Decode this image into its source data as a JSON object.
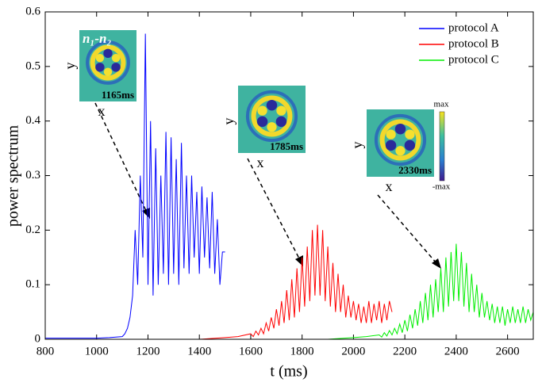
{
  "chart_data": {
    "type": "line",
    "xlabel": "t (ms)",
    "ylabel": "power spectrum",
    "xlim": [
      800,
      2700
    ],
    "xticks": [
      800,
      1000,
      1200,
      1400,
      1600,
      1800,
      2000,
      2200,
      2400,
      2600
    ],
    "ylim": [
      0,
      0.6
    ],
    "yticks": [
      0,
      0.1,
      0.2,
      0.3,
      0.4,
      0.5,
      0.6
    ],
    "legend": "upper right",
    "series": [
      {
        "name": "protocol A",
        "color": "#0000ff",
        "x": [
          800,
          1000,
          1050,
          1100,
          1110,
          1120,
          1130,
          1140,
          1150,
          1160,
          1170,
          1180,
          1190,
          1200,
          1210,
          1220,
          1230,
          1240,
          1250,
          1260,
          1270,
          1280,
          1290,
          1300,
          1310,
          1320,
          1330,
          1340,
          1350,
          1360,
          1370,
          1380,
          1390,
          1400,
          1410,
          1420,
          1430,
          1440,
          1450,
          1460,
          1470,
          1480,
          1490,
          1500
        ],
        "values": [
          0.002,
          0.002,
          0.003,
          0.005,
          0.01,
          0.02,
          0.04,
          0.08,
          0.2,
          0.1,
          0.3,
          0.15,
          0.56,
          0.1,
          0.4,
          0.08,
          0.35,
          0.1,
          0.3,
          0.12,
          0.38,
          0.1,
          0.37,
          0.12,
          0.33,
          0.1,
          0.36,
          0.13,
          0.3,
          0.12,
          0.3,
          0.15,
          0.27,
          0.12,
          0.28,
          0.15,
          0.26,
          0.13,
          0.27,
          0.12,
          0.22,
          0.1,
          0.16,
          0.16
        ]
      },
      {
        "name": "protocol B",
        "color": "#ff0000",
        "x": [
          800,
          1400,
          1500,
          1550,
          1600,
          1610,
          1620,
          1630,
          1640,
          1650,
          1660,
          1670,
          1680,
          1690,
          1700,
          1710,
          1720,
          1730,
          1740,
          1750,
          1760,
          1770,
          1780,
          1790,
          1800,
          1810,
          1820,
          1830,
          1840,
          1850,
          1860,
          1870,
          1880,
          1890,
          1900,
          1910,
          1920,
          1930,
          1940,
          1950,
          1960,
          1970,
          1980,
          1990,
          2000,
          2010,
          2020,
          2030,
          2040,
          2050,
          2060,
          2070,
          2080,
          2090,
          2100,
          2110,
          2120,
          2130,
          2140,
          2150
        ],
        "values": [
          0,
          0,
          0.003,
          0.005,
          0.01,
          0.005,
          0.015,
          0.008,
          0.02,
          0.01,
          0.03,
          0.015,
          0.04,
          0.02,
          0.055,
          0.025,
          0.07,
          0.03,
          0.09,
          0.035,
          0.11,
          0.04,
          0.13,
          0.05,
          0.15,
          0.06,
          0.17,
          0.07,
          0.2,
          0.08,
          0.21,
          0.08,
          0.2,
          0.07,
          0.17,
          0.06,
          0.14,
          0.05,
          0.12,
          0.05,
          0.1,
          0.04,
          0.08,
          0.04,
          0.07,
          0.035,
          0.065,
          0.03,
          0.06,
          0.03,
          0.07,
          0.03,
          0.065,
          0.035,
          0.07,
          0.03,
          0.065,
          0.035,
          0.07,
          0.05
        ]
      },
      {
        "name": "protocol C",
        "color": "#00ee00",
        "x": [
          800,
          1900,
          2000,
          2050,
          2100,
          2110,
          2120,
          2130,
          2140,
          2150,
          2160,
          2170,
          2180,
          2190,
          2200,
          2210,
          2220,
          2230,
          2240,
          2250,
          2260,
          2270,
          2280,
          2290,
          2300,
          2310,
          2320,
          2330,
          2340,
          2350,
          2360,
          2370,
          2380,
          2390,
          2400,
          2410,
          2420,
          2430,
          2440,
          2450,
          2460,
          2470,
          2480,
          2490,
          2500,
          2510,
          2520,
          2530,
          2540,
          2550,
          2560,
          2570,
          2580,
          2590,
          2600,
          2610,
          2620,
          2630,
          2640,
          2650,
          2660,
          2670,
          2680,
          2690,
          2700
        ],
        "values": [
          0,
          0,
          0.003,
          0.005,
          0.008,
          0.004,
          0.012,
          0.006,
          0.016,
          0.008,
          0.02,
          0.01,
          0.028,
          0.012,
          0.035,
          0.015,
          0.045,
          0.02,
          0.055,
          0.025,
          0.07,
          0.03,
          0.085,
          0.035,
          0.1,
          0.04,
          0.11,
          0.05,
          0.13,
          0.05,
          0.15,
          0.06,
          0.16,
          0.07,
          0.175,
          0.07,
          0.16,
          0.06,
          0.14,
          0.05,
          0.12,
          0.05,
          0.1,
          0.04,
          0.085,
          0.04,
          0.07,
          0.035,
          0.065,
          0.03,
          0.06,
          0.03,
          0.06,
          0.025,
          0.055,
          0.03,
          0.06,
          0.03,
          0.055,
          0.03,
          0.06,
          0.03,
          0.055,
          0.035,
          0.05
        ]
      }
    ],
    "inset_title": "n₁-n₂",
    "insets": [
      {
        "time_label": "1165ms",
        "x_label": "x",
        "y_label": "y"
      },
      {
        "time_label": "1785ms",
        "x_label": "x",
        "y_label": "y"
      },
      {
        "time_label": "2330ms",
        "x_label": "x",
        "y_label": "y"
      }
    ],
    "colorbar": {
      "max": "max",
      "min": "-max"
    }
  }
}
